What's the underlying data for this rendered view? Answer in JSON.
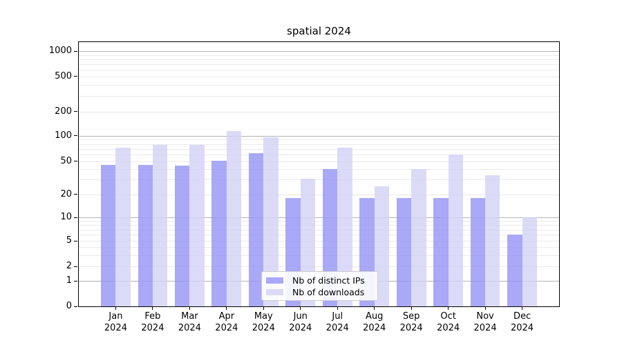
{
  "title": "spatial 2024",
  "chart_data": {
    "type": "bar",
    "title": "spatial 2024",
    "categories": [
      "Jan\n2024",
      "Feb\n2024",
      "Mar\n2024",
      "Apr\n2024",
      "May\n2024",
      "Jun\n2024",
      "Jul\n2024",
      "Aug\n2024",
      "Sep\n2024",
      "Oct\n2024",
      "Nov\n2024",
      "Dec\n2024"
    ],
    "series": [
      {
        "name": "Nb of distinct IPs",
        "color": "#a9a9f7",
        "values": [
          45,
          45,
          44,
          51,
          62,
          18,
          40,
          18,
          18,
          18,
          18,
          6
        ]
      },
      {
        "name": "Nb of downloads",
        "color": "#dbdbf8",
        "values": [
          72,
          78,
          78,
          113,
          95,
          31,
          72,
          25,
          40,
          60,
          34,
          10
        ]
      }
    ],
    "yscale": "symlog",
    "yticks": [
      0,
      1,
      2,
      5,
      10,
      20,
      50,
      100,
      200,
      500,
      1000
    ],
    "ylim": [
      0,
      1280
    ],
    "xlabel": "",
    "ylabel": "",
    "grid": true,
    "legend_position": "bottom-center",
    "colors": {
      "grid_major": "#b3b3b3",
      "grid_minor": "#eaeaea",
      "axis": "#000000",
      "text": "#111111",
      "background": "#ffffff"
    }
  }
}
